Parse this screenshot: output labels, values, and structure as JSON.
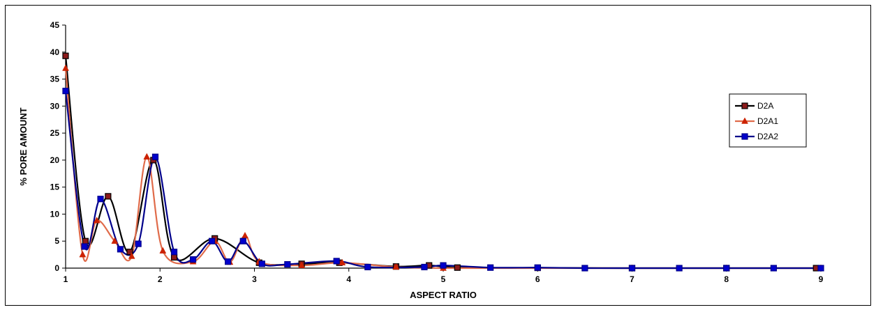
{
  "chart_data": {
    "type": "line",
    "title": "",
    "xlabel": "ASPECT RATIO",
    "ylabel": "% PORE AMOUNT",
    "xlim": [
      1,
      9
    ],
    "ylim": [
      0,
      45
    ],
    "x_ticks": [
      "1",
      "2",
      "3",
      "4",
      "5",
      "6",
      "7",
      "8",
      "9"
    ],
    "y_ticks": [
      "0",
      "5",
      "10",
      "15",
      "20",
      "25",
      "30",
      "35",
      "40",
      "45"
    ],
    "grid": false,
    "smooth": true,
    "legend_position": "right",
    "series": [
      {
        "name": "D2A",
        "color": "#000000",
        "marker": "square",
        "marker_fill": "#8b1a1a",
        "points": [
          [
            1.0,
            39.3
          ],
          [
            1.21,
            5.0
          ],
          [
            1.45,
            13.3
          ],
          [
            1.68,
            3.0
          ],
          [
            1.93,
            20.0
          ],
          [
            2.15,
            2.0
          ],
          [
            2.58,
            5.5
          ],
          [
            3.05,
            1.0
          ],
          [
            3.5,
            0.8
          ],
          [
            3.9,
            1.0
          ],
          [
            4.5,
            0.3
          ],
          [
            4.85,
            0.5
          ],
          [
            5.15,
            0.1
          ],
          [
            6.0,
            0.05
          ],
          [
            7.0,
            0.0
          ],
          [
            8.0,
            0.0
          ],
          [
            8.95,
            0.0
          ]
        ]
      },
      {
        "name": "D2A1",
        "color": "#e06b4a",
        "marker": "triangle",
        "marker_fill": "#cc2200",
        "points": [
          [
            1.0,
            37.0
          ],
          [
            1.18,
            2.5
          ],
          [
            1.33,
            8.8
          ],
          [
            1.52,
            5.0
          ],
          [
            1.7,
            2.2
          ],
          [
            1.86,
            20.6
          ],
          [
            2.03,
            3.2
          ],
          [
            2.35,
            1.2
          ],
          [
            2.58,
            5.0
          ],
          [
            2.74,
            1.1
          ],
          [
            2.9,
            6.0
          ],
          [
            3.05,
            1.2
          ],
          [
            3.5,
            0.5
          ],
          [
            3.93,
            1.0
          ],
          [
            4.5,
            0.2
          ],
          [
            5.0,
            0.0
          ],
          [
            6.0,
            0.0
          ],
          [
            7.0,
            0.0
          ],
          [
            8.0,
            0.0
          ],
          [
            9.0,
            0.0
          ]
        ]
      },
      {
        "name": "D2A2",
        "color": "#00008b",
        "marker": "square",
        "marker_fill": "#0000cc",
        "points": [
          [
            1.0,
            32.8
          ],
          [
            1.2,
            4.0
          ],
          [
            1.37,
            12.8
          ],
          [
            1.58,
            3.5
          ],
          [
            1.77,
            4.5
          ],
          [
            1.95,
            20.6
          ],
          [
            2.15,
            3.0
          ],
          [
            2.35,
            1.6
          ],
          [
            2.55,
            5.0
          ],
          [
            2.72,
            1.2
          ],
          [
            2.88,
            5.0
          ],
          [
            3.08,
            0.8
          ],
          [
            3.35,
            0.7
          ],
          [
            3.87,
            1.3
          ],
          [
            4.2,
            0.2
          ],
          [
            4.8,
            0.2
          ],
          [
            5.0,
            0.5
          ],
          [
            5.5,
            0.1
          ],
          [
            6.0,
            0.1
          ],
          [
            6.5,
            0.0
          ],
          [
            7.0,
            0.0
          ],
          [
            7.5,
            0.0
          ],
          [
            8.0,
            0.0
          ],
          [
            8.5,
            0.0
          ],
          [
            9.0,
            0.0
          ]
        ]
      }
    ]
  }
}
